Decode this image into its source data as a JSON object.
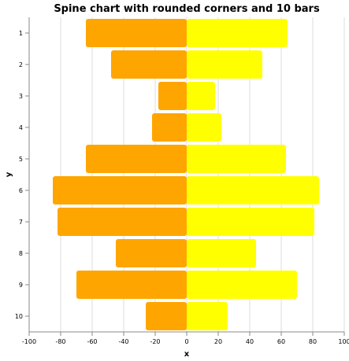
{
  "chart_data": {
    "type": "bar",
    "orientation": "horizontal",
    "stacked_diverging": true,
    "title": "Spine chart with rounded corners and 10 bars",
    "xlabel": "x",
    "ylabel": "y",
    "xlim": [
      -100,
      100
    ],
    "x_ticks": [
      -100,
      -80,
      -60,
      -40,
      -20,
      0,
      20,
      40,
      60,
      80,
      100
    ],
    "categories": [
      "1",
      "2",
      "3",
      "4",
      "5",
      "6",
      "7",
      "8",
      "9",
      "10"
    ],
    "series": [
      {
        "values": [
          -64,
          -48,
          -18,
          -22,
          -64,
          -85,
          -82,
          -45,
          -70,
          -26
        ],
        "color": "#ffa500"
      },
      {
        "values": [
          64,
          48,
          18,
          22,
          63,
          84,
          81,
          44,
          70,
          26
        ],
        "color": "#ffff00"
      }
    ],
    "grid": true
  }
}
